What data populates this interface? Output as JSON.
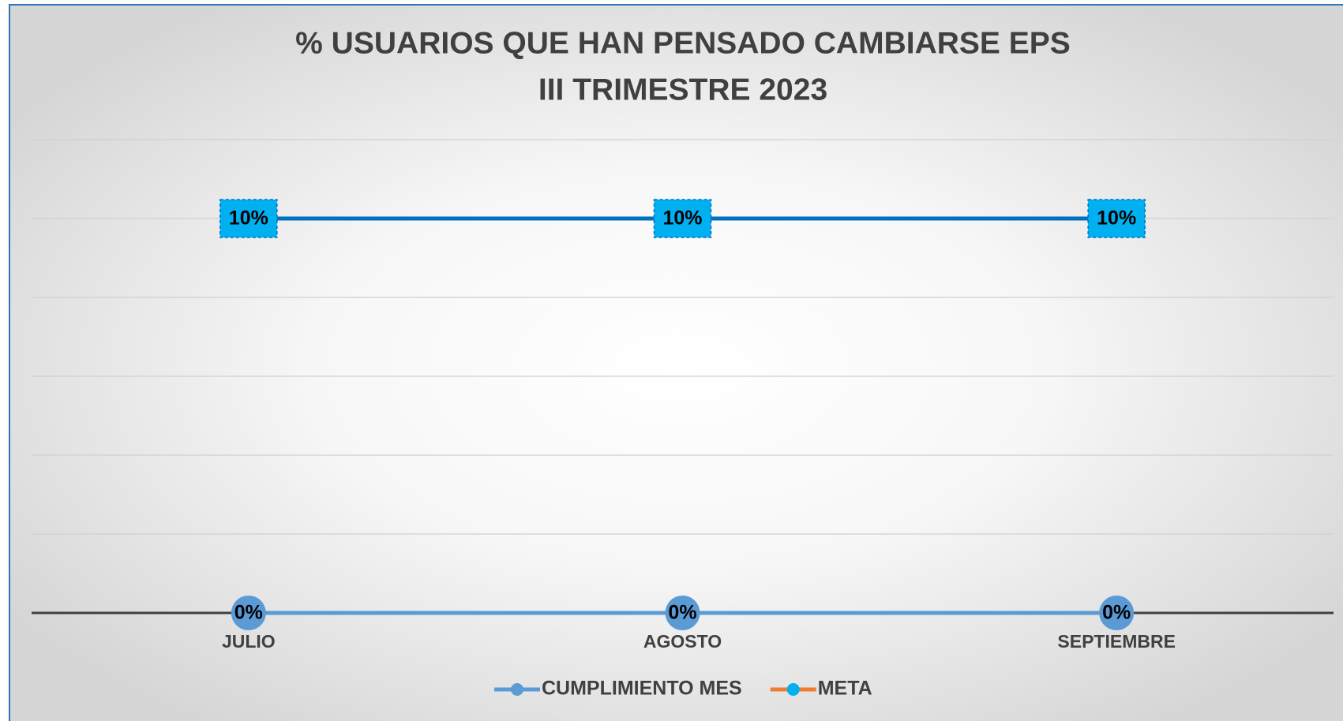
{
  "chart_data": {
    "type": "line",
    "title": "% USUARIOS QUE HAN PENSADO CAMBIARSE EPS",
    "subtitle": "III TRIMESTRE 2023",
    "categories": [
      "JULIO",
      "AGOSTO",
      "SEPTIEMBRE"
    ],
    "series": [
      {
        "name": "CUMPLIMIENTO MES",
        "color": "#5b9bd5",
        "marker_color": "#5b9bd5",
        "legend_line_color": "#5b9bd5",
        "values": [
          0,
          0,
          0
        ],
        "value_labels": [
          "0%",
          "0%",
          "0%"
        ]
      },
      {
        "name": "META",
        "color": "#0070c0",
        "marker_color": "#00b0f0",
        "legend_line_color": "#ed7d31",
        "values": [
          10,
          10,
          10
        ],
        "value_labels": [
          "10%",
          "10%",
          "10%"
        ]
      }
    ],
    "ylim": [
      0,
      12
    ],
    "yticks": [
      0,
      2,
      4,
      6,
      8,
      10,
      12
    ],
    "grid": true,
    "legend": "bottom"
  }
}
